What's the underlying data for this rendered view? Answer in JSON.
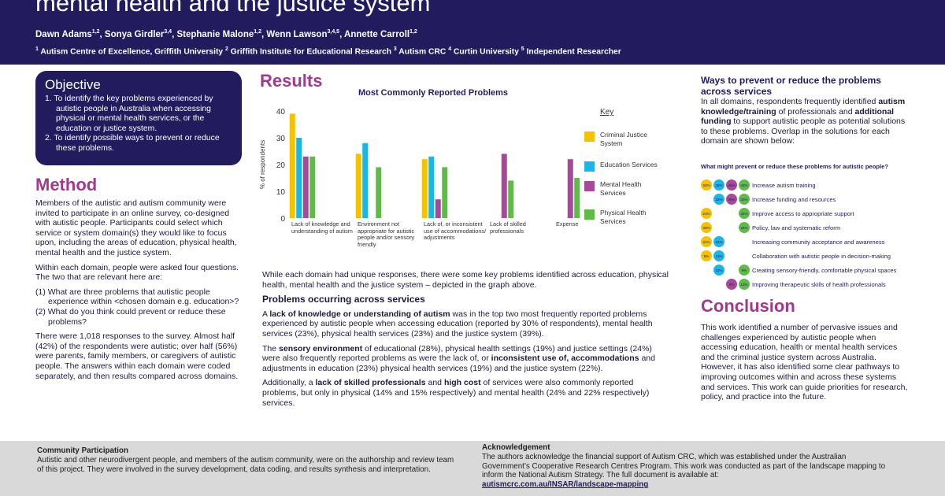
{
  "header": {
    "title": "mental health and the justice system",
    "authors": [
      {
        "name": "Dawn Adams",
        "sup": "1,2"
      },
      {
        "name": ", Sonya Girdler",
        "sup": "3,4"
      },
      {
        "name": ", Stephanie Malone",
        "sup": "1,2"
      },
      {
        "name": ", Wenn Lawson",
        "sup": "3,4,5"
      },
      {
        "name": ", Annette Carroll",
        "sup": "1,2"
      }
    ],
    "affiliations": [
      {
        "sup": "1",
        "text": " Autism Centre of Excellence, Griffith University "
      },
      {
        "sup": "2",
        "text": " Griffith Institute for Educational Research "
      },
      {
        "sup": "3",
        "text": " Autism CRC "
      },
      {
        "sup": "4",
        "text": " Curtin University "
      },
      {
        "sup": "5",
        "text": " Independent Researcher"
      }
    ]
  },
  "objective": {
    "title": "Objective",
    "items": [
      "1.  To identify the key problems experienced by autistic people in Australia when accessing physical or mental health services, or the education or justice system.",
      "2.  To identify possible ways to prevent or reduce these problems."
    ]
  },
  "method": {
    "title": "Method",
    "paragraphs": [
      "Members of the autistic and autism community were invited to participate in an online survey, co-designed with autistic people. Participants could select which service or system domain(s) they would like to focus upon, including the areas of education, physical health, mental health and the justice system.",
      "Within each domain, people were asked four questions. The two that are relevant here are:",
      "(1) What are three problems that autistic people experience within <chosen domain e.g. education>?",
      "(2) What do you think could prevent or reduce these problems?",
      "There were 1,018 responses to the survey. Almost half (42%) of the respondents were autistic; over half (56%) were parents, family members, or caregivers of autistic people. The answers within each domain were coded separately, and then results compared across domains."
    ]
  },
  "results": {
    "title": "Results",
    "intro": "While each domain had unique responses, there were some key problems identified across education, physical health, mental health and the justice system – depicted in the graph above.",
    "subheading": "Problems occurring across services",
    "paragraphs": [
      [
        "A ",
        {
          "bold": "lack of knowledge or understanding of autism"
        },
        " was in the top two most frequently reported problems experienced by autistic people when accessing education (reported by 30% of respondents), mental health services (23%), physical health services (23%) and the justice system (39%)."
      ],
      [
        "The ",
        {
          "bold": "sensory environment"
        },
        " of educational (28%), physical health settings (19%) and justice settings (24%) were also frequently reported problems as were the lack of, or ",
        {
          "bold": "inconsistent use of, accommodations"
        },
        " and adjustments in education (23%) physical health services (19%) and the justice system (22%)."
      ],
      [
        "Additionally, a ",
        {
          "bold": "lack of skilled professionals"
        },
        " and ",
        {
          "bold": "high cost"
        },
        " of services were also commonly reported problems, but only in physical (14% and 15% respectively) and mental health (24% and 22% respectively) services."
      ]
    ]
  },
  "chart_data": {
    "type": "bar",
    "title": "Most Commonly Reported Problems",
    "y_label": "% of respondents",
    "legend_title": "Key",
    "categories": [
      "Lack of knowledge and understanding of autism",
      "Environment not appropriate for autistic people and/or sensory friendly",
      "Lack of, or inconsistent use of accommodations/ adjustments",
      "Lack of skilled professionals",
      "Expense"
    ],
    "series": [
      {
        "name": "Criminal Justice System",
        "color": "#f5c200",
        "values": [
          39,
          24,
          22,
          null,
          null
        ]
      },
      {
        "name": "Education Services",
        "color": "#1ab6e8",
        "values": [
          30,
          28,
          23,
          null,
          null
        ]
      },
      {
        "name": "Mental Health Services",
        "color": "#a8489a",
        "values": [
          23,
          null,
          7,
          24,
          22
        ]
      },
      {
        "name": "Physical Health Services",
        "color": "#5dbb46",
        "values": [
          23,
          19,
          19,
          14,
          15
        ]
      }
    ],
    "ylim": [
      0,
      40
    ],
    "yticks": [
      0,
      10,
      20,
      30,
      40
    ],
    "grid": false
  },
  "solutions": {
    "title": "Ways to prevent or reduce the problems across services",
    "text": [
      "In all domains, respondents frequently identified ",
      {
        "bold": "autism knowledge/training"
      },
      " of professionals and ",
      {
        "bold": "additional funding"
      },
      " to support autistic people as potential solutions to these problems. Overlap in the solutions for each domain are shown below:"
    ],
    "figure_title": "What might prevent or reduce these problems for autistic people?",
    "rows": [
      {
        "label": "Increase autism training",
        "circles": [
          {
            "color": "#f5c200",
            "label": "52%"
          },
          {
            "color": "#1ab6e8",
            "label": "45%"
          },
          {
            "color": "#a8489a",
            "label": "40%"
          },
          {
            "color": "#5dbb46",
            "label": "43%"
          }
        ]
      },
      {
        "label": "Increase funding and resources",
        "circles": [
          {
            "color": "#1ab6e8",
            "label": "32%"
          },
          {
            "color": "#a8489a",
            "label": "35%"
          },
          {
            "color": "#5dbb46",
            "label": "33%"
          }
        ]
      },
      {
        "label": "Improve access to appropriate support",
        "circles": [
          {
            "color": "#f5c200",
            "label": "21%"
          },
          {
            "color": "#5dbb46",
            "label": "22%"
          }
        ]
      },
      {
        "label": "Policy, law and systematic reform",
        "circles": [
          {
            "color": "#f5c200",
            "label": "25%"
          },
          {
            "color": "#5dbb46",
            "label": "24%"
          }
        ]
      },
      {
        "label": "Increasing community acceptance and awareness",
        "circles": [
          {
            "color": "#f5c200",
            "label": "21%"
          },
          {
            "color": "#1ab6e8",
            "label": "24%"
          }
        ]
      },
      {
        "label": "Collaboration with autistic people in decision-making",
        "circles": [
          {
            "color": "#f5c200",
            "label": "8%"
          },
          {
            "color": "#1ab6e8",
            "label": "13%"
          }
        ]
      },
      {
        "label": "Creating sensory-friendly, comfortable physical spaces",
        "circles": [
          {
            "color": "#1ab6e8",
            "label": "12%"
          },
          {
            "color": "#5dbb46",
            "label": "9%"
          }
        ]
      },
      {
        "label": "Improving therapeutic skills of health professionals",
        "circles": [
          {
            "color": "#a8489a",
            "label": "5%"
          },
          {
            "color": "#5dbb46",
            "label": "13%"
          }
        ]
      }
    ]
  },
  "conclusion": {
    "title": "Conclusion",
    "text": "This work identified a number of pervasive issues and challenges experienced by autistic people when accessing education, health or mental health services and the criminal justice system across Australia. However, it has also identified some clear pathways to improving outcomes within and across these systems and services. This work can guide priorities for research, policy, and practice into the future."
  },
  "footer": {
    "community": {
      "title": "Community Participation",
      "text": "Autistic and other neurodivergent people, and members of the autism community, were on the authorship and review team of this project. They were involved in the survey development, data coding, and results synthesis and interpretation."
    },
    "acknowledgement": {
      "title": "Acknowledgement",
      "text": "The authors acknowledge the financial support of Autism CRC, which was established under the Australian Government’s Cooperative Research Centres Program. This work was conducted as part of the landscape mapping to inform the National Autism Strategy. The full document is available at:",
      "link": "autismcrc.com.au/INSAR/landscape-mapping"
    }
  }
}
